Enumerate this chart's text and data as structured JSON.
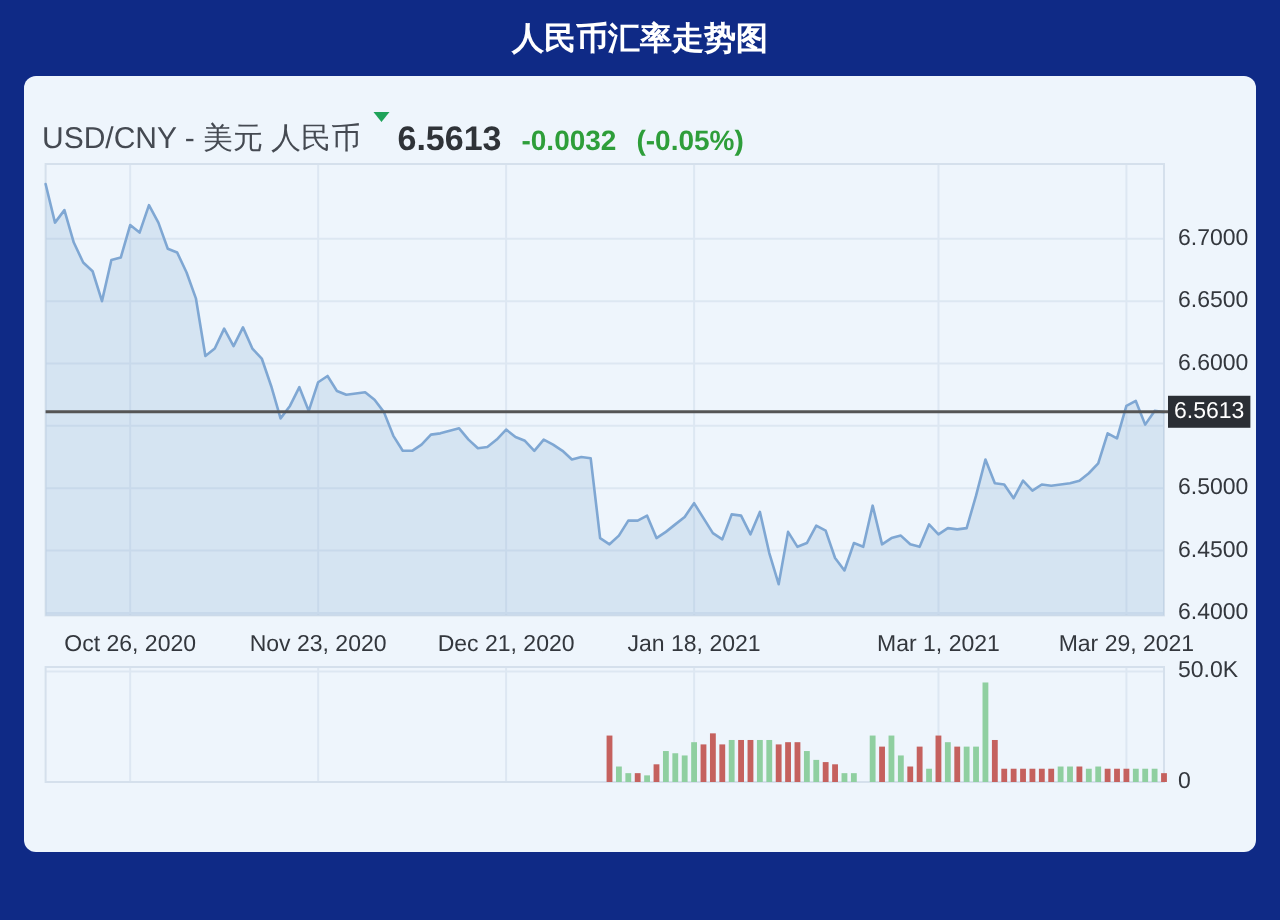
{
  "chart_data": [
    {
      "type": "area",
      "title": "人民币汇率走势图",
      "subtitle": "USD/CNY - 美元 人民币",
      "annotations": [
        "6.5613",
        "-0.0032",
        "(-0.05%)"
      ],
      "color": "#7fa7d3",
      "categories": [
        null,
        null,
        null,
        null,
        null,
        null,
        null,
        null,
        null,
        "Oct 26, 2020",
        null,
        null,
        null,
        null,
        null,
        null,
        null,
        null,
        null,
        null,
        null,
        null,
        null,
        null,
        null,
        null,
        null,
        null,
        null,
        "Nov 23, 2020",
        null,
        null,
        null,
        null,
        null,
        null,
        null,
        null,
        null,
        null,
        null,
        null,
        null,
        null,
        null,
        null,
        null,
        null,
        null,
        "Dec 21, 2020",
        null,
        null,
        null,
        null,
        null,
        null,
        null,
        null,
        null,
        null,
        null,
        null,
        null,
        null,
        null,
        null,
        null,
        null,
        null,
        "Jan 18, 2021",
        null,
        null,
        null,
        null,
        null,
        null,
        null,
        null,
        null,
        null,
        null,
        null,
        null,
        null,
        null,
        null,
        null,
        null,
        null,
        null,
        null,
        null,
        null,
        null,
        null,
        "Mar 1, 2021",
        null,
        null,
        null,
        null,
        null,
        null,
        null,
        null,
        null,
        null,
        null,
        null,
        null,
        null,
        null,
        null,
        null,
        null,
        null,
        "Mar 29, 2021",
        null,
        null,
        null,
        null
      ],
      "values": [
        6.744,
        6.713,
        6.723,
        6.697,
        6.681,
        6.674,
        6.65,
        6.683,
        6.685,
        6.711,
        6.705,
        6.727,
        6.713,
        6.692,
        6.689,
        6.673,
        6.652,
        6.606,
        6.612,
        6.628,
        6.614,
        6.629,
        6.612,
        6.604,
        6.582,
        6.556,
        6.566,
        6.581,
        6.562,
        6.585,
        6.59,
        6.578,
        6.575,
        6.576,
        6.577,
        6.571,
        6.561,
        6.542,
        6.53,
        6.53,
        6.535,
        6.543,
        6.544,
        6.546,
        6.548,
        6.539,
        6.532,
        6.533,
        6.539,
        6.547,
        6.541,
        6.538,
        6.53,
        6.539,
        6.535,
        6.53,
        6.523,
        6.525,
        6.524,
        6.46,
        6.455,
        6.462,
        6.474,
        6.474,
        6.478,
        6.46,
        6.465,
        6.471,
        6.477,
        6.488,
        6.476,
        6.464,
        6.459,
        6.479,
        6.478,
        6.463,
        6.481,
        6.448,
        6.423,
        6.465,
        6.453,
        6.456,
        6.47,
        6.466,
        6.444,
        6.434,
        6.456,
        6.453,
        6.486,
        6.455,
        6.46,
        6.462,
        6.455,
        6.453,
        6.471,
        6.463,
        6.468,
        6.467,
        6.468,
        6.494,
        6.523,
        6.504,
        6.503,
        6.492,
        6.506,
        6.498,
        6.503,
        6.502,
        6.503,
        6.504,
        6.506,
        6.512,
        6.52,
        6.544,
        6.54,
        6.566,
        6.57,
        6.551,
        6.562,
        6.561
      ],
      "ylim": [
        6.398,
        6.76
      ],
      "yticks": [
        {
          "value": 6.4,
          "label": "6.4000"
        },
        {
          "value": 6.45,
          "label": "6.4500"
        },
        {
          "value": 6.5,
          "label": "6.5000"
        },
        {
          "value": 6.55,
          "label": null
        },
        {
          "value": 6.6,
          "label": "6.6000"
        },
        {
          "value": 6.65,
          "label": "6.6500"
        },
        {
          "value": 6.7,
          "label": "6.7000"
        }
      ],
      "ref_lines": [
        {
          "axis": "y",
          "value": 6.5613,
          "label": "6.5613",
          "color": "#555555"
        }
      ],
      "grid": true
    },
    {
      "type": "bar",
      "categories": [
        null,
        null,
        null,
        null,
        null,
        null,
        null,
        null,
        null,
        null,
        null,
        null,
        null,
        null,
        null,
        null,
        null,
        null,
        null,
        null,
        null,
        null,
        null,
        null,
        null,
        null,
        null,
        null,
        null,
        null,
        null,
        null,
        null,
        null,
        null,
        null,
        null,
        null,
        null,
        null,
        null,
        null,
        null,
        null,
        null,
        null,
        null,
        null,
        null,
        null,
        null,
        null,
        null,
        null,
        null,
        null,
        null,
        null,
        null,
        null,
        null,
        null,
        null,
        null,
        null,
        null,
        null,
        null,
        null,
        null,
        null,
        null,
        null,
        null,
        null,
        null,
        null,
        null,
        null,
        null,
        null,
        null,
        null,
        null,
        null,
        null,
        null,
        null,
        null,
        null,
        null,
        null,
        null,
        null,
        null,
        null,
        null,
        null,
        null,
        null,
        null,
        null,
        null,
        null,
        null,
        null,
        null,
        null,
        null,
        null,
        null,
        null,
        null,
        null,
        null,
        null,
        null,
        null,
        null,
        null
      ],
      "values": [
        null,
        null,
        null,
        null,
        null,
        null,
        null,
        null,
        null,
        null,
        null,
        null,
        null,
        null,
        null,
        null,
        null,
        null,
        null,
        null,
        null,
        null,
        null,
        null,
        null,
        null,
        null,
        null,
        null,
        null,
        null,
        null,
        null,
        null,
        null,
        null,
        null,
        null,
        null,
        null,
        null,
        null,
        null,
        null,
        null,
        null,
        null,
        null,
        null,
        null,
        null,
        null,
        null,
        null,
        null,
        null,
        null,
        null,
        null,
        null,
        21000,
        7000,
        4000,
        4000,
        3000,
        8000,
        14000,
        13000,
        12000,
        18000,
        17000,
        22000,
        17000,
        19000,
        19000,
        19000,
        19000,
        19000,
        17000,
        18000,
        18000,
        14000,
        10000,
        9000,
        8000,
        4000,
        4000,
        null,
        21000,
        16000,
        21000,
        12000,
        7000,
        16000,
        6000,
        21000,
        18000,
        16000,
        16000,
        16000,
        45000,
        19000,
        6000,
        6000,
        6000,
        6000,
        6000,
        6000,
        7000,
        7000,
        7000,
        6000,
        7000,
        6000,
        6000,
        6000,
        6000,
        6000,
        6000,
        4000
      ],
      "colors": [
        null,
        null,
        null,
        null,
        null,
        null,
        null,
        null,
        null,
        null,
        null,
        null,
        null,
        null,
        null,
        null,
        null,
        null,
        null,
        null,
        null,
        null,
        null,
        null,
        null,
        null,
        null,
        null,
        null,
        null,
        null,
        null,
        null,
        null,
        null,
        null,
        null,
        null,
        null,
        null,
        null,
        null,
        null,
        null,
        null,
        null,
        null,
        null,
        null,
        null,
        null,
        null,
        null,
        null,
        null,
        null,
        null,
        null,
        null,
        null,
        "#c5615e",
        "#8fcfa0",
        "#8fcfa0",
        "#c5615e",
        "#8fcfa0",
        "#c5615e",
        "#8fcfa0",
        "#8fcfa0",
        "#8fcfa0",
        "#8fcfa0",
        "#c5615e",
        "#c5615e",
        "#c5615e",
        "#8fcfa0",
        "#c5615e",
        "#c5615e",
        "#8fcfa0",
        "#8fcfa0",
        "#c5615e",
        "#c5615e",
        "#c5615e",
        "#8fcfa0",
        "#8fcfa0",
        "#c5615e",
        "#c5615e",
        "#8fcfa0",
        "#8fcfa0",
        null,
        "#8fcfa0",
        "#c5615e",
        "#8fcfa0",
        "#8fcfa0",
        "#c5615e",
        "#c5615e",
        "#8fcfa0",
        "#c5615e",
        "#8fcfa0",
        "#c5615e",
        "#8fcfa0",
        "#8fcfa0",
        "#8fcfa0",
        "#c5615e",
        "#c5615e",
        "#c5615e",
        "#c5615e",
        "#c5615e",
        "#c5615e",
        "#c5615e",
        "#8fcfa0",
        "#8fcfa0",
        "#c5615e",
        "#8fcfa0",
        "#8fcfa0",
        "#c5615e",
        "#c5615e",
        "#c5615e",
        "#8fcfa0",
        "#8fcfa0",
        "#8fcfa0",
        "#c5615e"
      ],
      "ylim": [
        0,
        52000
      ],
      "yticks": [
        0,
        {
          "value": 50000,
          "label": "50.0K"
        }
      ],
      "tick_labels": "y",
      "grid": true
    }
  ]
}
